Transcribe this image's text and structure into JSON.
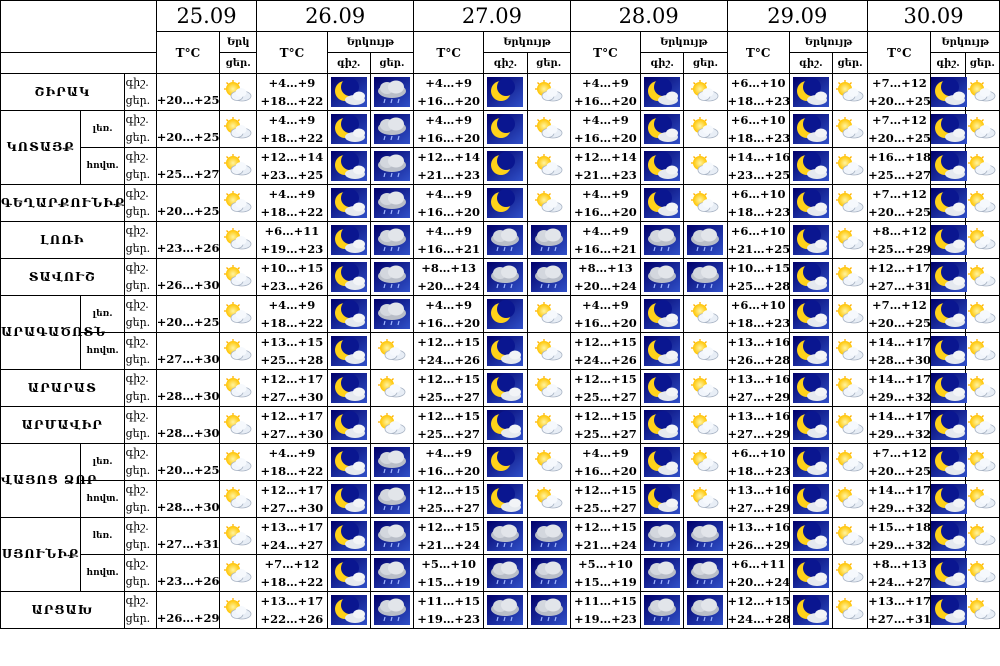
{
  "labels": {
    "temp": "T°C",
    "sky": "Երկույթ",
    "sky_short": "Երկ",
    "night": "գիշ.",
    "day": "ցեր."
  },
  "dates": [
    "25.09",
    "26.09",
    "27.09",
    "28.09",
    "29.09",
    "30.09"
  ],
  "rows": [
    {
      "region": "ՇԻՐԱԿ",
      "sub": "",
      "t0": "+20…+25",
      "i0": "partly-cloudy-icon",
      "d": [
        {
          "n": "+4…+9",
          "dy": "+18…+22",
          "ni": "moon-cloud-icon",
          "di": "rain-cloud-icon"
        },
        {
          "n": "+4…+9",
          "dy": "+16…+20",
          "ni": "moon-icon",
          "di": "partly-cloudy-icon"
        },
        {
          "n": "+4…+9",
          "dy": "+16…+20",
          "ni": "moon-cloud-icon",
          "di": "partly-cloudy-icon"
        },
        {
          "n": "+6…+10",
          "dy": "+18…+23",
          "ni": "moon-cloud-icon",
          "di": "partly-cloudy-icon"
        },
        {
          "n": "+7…+12",
          "dy": "+20…+25",
          "ni": "moon-cloud-icon",
          "di": "partly-cloudy-icon"
        }
      ]
    },
    {
      "region": "ԿՈՏԱՅՔ",
      "sub": "լեռ.",
      "t0": "+20…+25",
      "i0": "partly-cloudy-icon",
      "d": [
        {
          "n": "+4…+9",
          "dy": "+18…+22",
          "ni": "moon-cloud-icon",
          "di": "rain-cloud-icon"
        },
        {
          "n": "+4…+9",
          "dy": "+16…+20",
          "ni": "moon-icon",
          "di": "partly-cloudy-icon"
        },
        {
          "n": "+4…+9",
          "dy": "+16…+20",
          "ni": "moon-cloud-icon",
          "di": "partly-cloudy-icon"
        },
        {
          "n": "+6…+10",
          "dy": "+18…+23",
          "ni": "moon-cloud-icon",
          "di": "partly-cloudy-icon"
        },
        {
          "n": "+7…+12",
          "dy": "+20…+25",
          "ni": "moon-cloud-icon",
          "di": "partly-cloudy-icon"
        }
      ]
    },
    {
      "region": "",
      "sub": "հովտ.",
      "t0": "+25…+27",
      "i0": "partly-cloudy-icon",
      "d": [
        {
          "n": "+12…+14",
          "dy": "+23…+25",
          "ni": "moon-cloud-icon",
          "di": "rain-cloud-icon"
        },
        {
          "n": "+12…+14",
          "dy": "+21…+23",
          "ni": "moon-icon",
          "di": "partly-cloudy-icon"
        },
        {
          "n": "+12…+14",
          "dy": "+21…+23",
          "ni": "moon-cloud-icon",
          "di": "partly-cloudy-icon"
        },
        {
          "n": "+14…+16",
          "dy": "+23…+25",
          "ni": "moon-cloud-icon",
          "di": "partly-cloudy-icon"
        },
        {
          "n": "+16…+18",
          "dy": "+25…+27",
          "ni": "moon-cloud-icon",
          "di": "partly-cloudy-icon"
        }
      ]
    },
    {
      "region": "ԳԵՂԱՐՔՈՒՆԻՔ",
      "sub": "",
      "t0": "+20…+25",
      "i0": "partly-cloudy-icon",
      "d": [
        {
          "n": "+4…+9",
          "dy": "+18…+22",
          "ni": "moon-cloud-icon",
          "di": "rain-cloud-icon"
        },
        {
          "n": "+4…+9",
          "dy": "+16…+20",
          "ni": "moon-icon",
          "di": "partly-cloudy-icon"
        },
        {
          "n": "+4…+9",
          "dy": "+16…+20",
          "ni": "moon-cloud-icon",
          "di": "partly-cloudy-icon"
        },
        {
          "n": "+6…+10",
          "dy": "+18…+23",
          "ni": "moon-cloud-icon",
          "di": "partly-cloudy-icon"
        },
        {
          "n": "+7…+12",
          "dy": "+20…+25",
          "ni": "moon-cloud-icon",
          "di": "partly-cloudy-icon"
        }
      ]
    },
    {
      "region": "ԼՈՌԻ",
      "sub": "",
      "t0": "+23…+26",
      "i0": "partly-cloudy-icon",
      "d": [
        {
          "n": "+6…+11",
          "dy": "+19…+23",
          "ni": "moon-cloud-icon",
          "di": "rain-cloud-icon"
        },
        {
          "n": "+4…+9",
          "dy": "+16…+21",
          "ni": "rain-cloud-icon",
          "di": "rain-cloud-icon"
        },
        {
          "n": "+4…+9",
          "dy": "+16…+21",
          "ni": "rain-cloud-icon",
          "di": "rain-cloud-icon"
        },
        {
          "n": "+6…+10",
          "dy": "+21…+25",
          "ni": "moon-cloud-icon",
          "di": "partly-cloudy-icon"
        },
        {
          "n": "+8…+12",
          "dy": "+25…+29",
          "ni": "moon-cloud-icon",
          "di": "partly-cloudy-icon"
        }
      ]
    },
    {
      "region": "ՏԱՎՈՒՇ",
      "sub": "",
      "t0": "+26…+30",
      "i0": "partly-cloudy-icon",
      "d": [
        {
          "n": "+10…+15",
          "dy": "+23…+26",
          "ni": "moon-cloud-icon",
          "di": "rain-cloud-icon"
        },
        {
          "n": "+8…+13",
          "dy": "+20…+24",
          "ni": "rain-cloud-icon",
          "di": "rain-cloud-icon"
        },
        {
          "n": "+8…+13",
          "dy": "+20…+24",
          "ni": "rain-cloud-icon",
          "di": "rain-cloud-icon"
        },
        {
          "n": "+10…+15",
          "dy": "+25…+28",
          "ni": "moon-cloud-icon",
          "di": "partly-cloudy-icon"
        },
        {
          "n": "+12…+17",
          "dy": "+27…+31",
          "ni": "moon-cloud-icon",
          "di": "partly-cloudy-icon"
        }
      ]
    },
    {
      "region": "ԱՐԱԳԱԾՈՏՆ",
      "sub": "լեռ.",
      "t0": "+20…+25",
      "i0": "partly-cloudy-icon",
      "d": [
        {
          "n": "+4…+9",
          "dy": "+18…+22",
          "ni": "moon-cloud-icon",
          "di": "rain-cloud-icon"
        },
        {
          "n": "+4…+9",
          "dy": "+16…+20",
          "ni": "moon-icon",
          "di": "partly-cloudy-icon"
        },
        {
          "n": "+4…+9",
          "dy": "+16…+20",
          "ni": "moon-cloud-icon",
          "di": "partly-cloudy-icon"
        },
        {
          "n": "+6…+10",
          "dy": "+18…+23",
          "ni": "moon-cloud-icon",
          "di": "partly-cloudy-icon"
        },
        {
          "n": "+7…+12",
          "dy": "+20…+25",
          "ni": "moon-cloud-icon",
          "di": "partly-cloudy-icon"
        }
      ]
    },
    {
      "region": "",
      "sub": "հովտ.",
      "t0": "+27…+30",
      "i0": "partly-cloudy-icon",
      "d": [
        {
          "n": "+13…+15",
          "dy": "+25…+28",
          "ni": "moon-cloud-icon",
          "di": "partly-cloudy-icon"
        },
        {
          "n": "+12…+15",
          "dy": "+24…+26",
          "ni": "moon-cloud-icon",
          "di": "partly-cloudy-icon"
        },
        {
          "n": "+12…+15",
          "dy": "+24…+26",
          "ni": "moon-cloud-icon",
          "di": "partly-cloudy-icon"
        },
        {
          "n": "+13…+16",
          "dy": "+26…+28",
          "ni": "moon-cloud-icon",
          "di": "partly-cloudy-icon"
        },
        {
          "n": "+14…+17",
          "dy": "+28…+30",
          "ni": "moon-cloud-icon",
          "di": "partly-cloudy-icon"
        }
      ]
    },
    {
      "region": "ԱՐԱՐԱՏ",
      "sub": "",
      "t0": "+28…+30",
      "i0": "partly-cloudy-icon",
      "d": [
        {
          "n": "+12…+17",
          "dy": "+27…+30",
          "ni": "moon-cloud-icon",
          "di": "partly-cloudy-icon"
        },
        {
          "n": "+12…+15",
          "dy": "+25…+27",
          "ni": "moon-cloud-icon",
          "di": "partly-cloudy-icon"
        },
        {
          "n": "+12…+15",
          "dy": "+25…+27",
          "ni": "moon-cloud-icon",
          "di": "partly-cloudy-icon"
        },
        {
          "n": "+13…+16",
          "dy": "+27…+29",
          "ni": "moon-cloud-icon",
          "di": "partly-cloudy-icon"
        },
        {
          "n": "+14…+17",
          "dy": "+29…+32",
          "ni": "moon-cloud-icon",
          "di": "partly-cloudy-icon"
        }
      ]
    },
    {
      "region": "ԱՐՄԱՎԻՐ",
      "sub": "",
      "t0": "+28…+30",
      "i0": "partly-cloudy-icon",
      "d": [
        {
          "n": "+12…+17",
          "dy": "+27…+30",
          "ni": "moon-cloud-icon",
          "di": "partly-cloudy-icon"
        },
        {
          "n": "+12…+15",
          "dy": "+25…+27",
          "ni": "moon-cloud-icon",
          "di": "partly-cloudy-icon"
        },
        {
          "n": "+12…+15",
          "dy": "+25…+27",
          "ni": "moon-cloud-icon",
          "di": "partly-cloudy-icon"
        },
        {
          "n": "+13…+16",
          "dy": "+27…+29",
          "ni": "moon-cloud-icon",
          "di": "partly-cloudy-icon"
        },
        {
          "n": "+14…+17",
          "dy": "+29…+32",
          "ni": "moon-cloud-icon",
          "di": "partly-cloudy-icon"
        }
      ]
    },
    {
      "region": "ՎԱՅՈՑ ՁՈՐ",
      "sub": "լեռ.",
      "t0": "+20…+25",
      "i0": "partly-cloudy-icon",
      "d": [
        {
          "n": "+4…+9",
          "dy": "+18…+22",
          "ni": "moon-cloud-icon",
          "di": "rain-cloud-icon"
        },
        {
          "n": "+4…+9",
          "dy": "+16…+20",
          "ni": "moon-icon",
          "di": "partly-cloudy-icon"
        },
        {
          "n": "+4…+9",
          "dy": "+16…+20",
          "ni": "moon-cloud-icon",
          "di": "partly-cloudy-icon"
        },
        {
          "n": "+6…+10",
          "dy": "+18…+23",
          "ni": "moon-cloud-icon",
          "di": "partly-cloudy-icon"
        },
        {
          "n": "+7…+12",
          "dy": "+20…+25",
          "ni": "moon-cloud-icon",
          "di": "partly-cloudy-icon"
        }
      ]
    },
    {
      "region": "",
      "sub": "հովտ.",
      "t0": "+28…+30",
      "i0": "partly-cloudy-icon",
      "d": [
        {
          "n": "+12…+17",
          "dy": "+27…+30",
          "ni": "moon-cloud-icon",
          "di": "rain-cloud-icon"
        },
        {
          "n": "+12…+15",
          "dy": "+25…+27",
          "ni": "moon-cloud-icon",
          "di": "partly-cloudy-icon"
        },
        {
          "n": "+12…+15",
          "dy": "+25…+27",
          "ni": "moon-cloud-icon",
          "di": "partly-cloudy-icon"
        },
        {
          "n": "+13…+16",
          "dy": "+27…+29",
          "ni": "moon-cloud-icon",
          "di": "partly-cloudy-icon"
        },
        {
          "n": "+14…+17",
          "dy": "+29…+32",
          "ni": "moon-cloud-icon",
          "di": "partly-cloudy-icon"
        }
      ]
    },
    {
      "region": "ՍՅՈՒՆԻՔ",
      "sub": "lեռ.",
      "t0": "+27…+31",
      "i0": "partly-cloudy-icon",
      "d": [
        {
          "n": "+13…+17",
          "dy": "+24…+27",
          "ni": "moon-cloud-icon",
          "di": "rain-cloud-icon"
        },
        {
          "n": "+12…+15",
          "dy": "+21…+24",
          "ni": "rain-cloud-icon",
          "di": "rain-cloud-icon"
        },
        {
          "n": "+12…+15",
          "dy": "+21…+24",
          "ni": "rain-cloud-icon",
          "di": "rain-cloud-icon"
        },
        {
          "n": "+13…+16",
          "dy": "+26…+29",
          "ni": "moon-cloud-icon",
          "di": "partly-cloudy-icon"
        },
        {
          "n": "+15…+18",
          "dy": "+29…+32",
          "ni": "moon-cloud-icon",
          "di": "partly-cloudy-icon"
        }
      ]
    },
    {
      "region": "",
      "sub": "հովտ.",
      "t0": "+23…+26",
      "i0": "partly-cloudy-icon",
      "d": [
        {
          "n": "+7…+12",
          "dy": "+18…+22",
          "ni": "moon-cloud-icon",
          "di": "rain-cloud-icon"
        },
        {
          "n": "+5…+10",
          "dy": "+15…+19",
          "ni": "rain-cloud-icon",
          "di": "rain-cloud-icon"
        },
        {
          "n": "+5…+10",
          "dy": "+15…+19",
          "ni": "rain-cloud-icon",
          "di": "rain-cloud-icon"
        },
        {
          "n": "+6…+11",
          "dy": "+20…+24",
          "ni": "moon-cloud-icon",
          "di": "partly-cloudy-icon"
        },
        {
          "n": "+8…+13",
          "dy": "+24…+27",
          "ni": "moon-cloud-icon",
          "di": "partly-cloudy-icon"
        }
      ]
    },
    {
      "region": "ԱՐՑԱԽ",
      "sub": "",
      "t0": "+26…+29",
      "i0": "partly-cloudy-icon",
      "d": [
        {
          "n": "+13…+17",
          "dy": "+22…+26",
          "ni": "moon-cloud-icon",
          "di": "rain-cloud-icon"
        },
        {
          "n": "+11…+15",
          "dy": "+19…+23",
          "ni": "rain-cloud-icon",
          "di": "rain-cloud-icon"
        },
        {
          "n": "+11…+15",
          "dy": "+19…+23",
          "ni": "rain-cloud-icon",
          "di": "rain-cloud-icon"
        },
        {
          "n": "+12…+15",
          "dy": "+24…+28",
          "ni": "moon-cloud-icon",
          "di": "partly-cloudy-icon"
        },
        {
          "n": "+13…+17",
          "dy": "+27…+31",
          "ni": "moon-cloud-icon",
          "di": "partly-cloudy-icon"
        }
      ]
    }
  ]
}
